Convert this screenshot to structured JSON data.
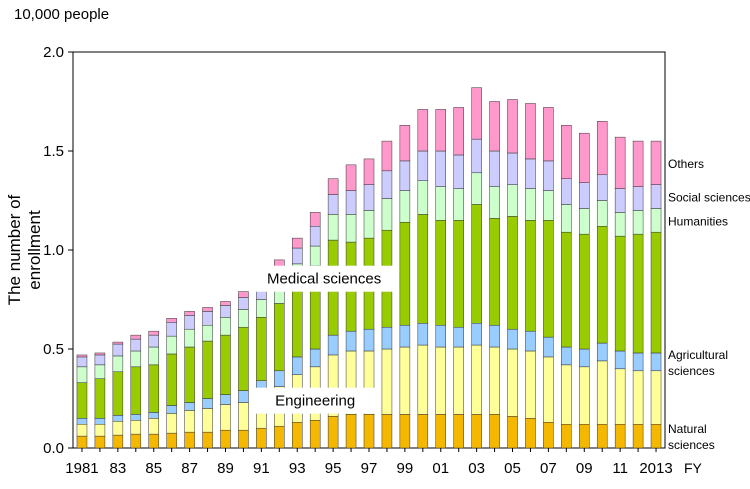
{
  "unit_label": "10,000 people",
  "chart_data": {
    "type": "bar",
    "stacked": true,
    "ylabel": "The number of enrollment",
    "ylim": [
      0,
      2.0
    ],
    "y_ticks": [
      "0.0",
      "0.5",
      "1.0",
      "1.5",
      "2.0"
    ],
    "x_axis_suffix": "FY",
    "categories": [
      "1981",
      "82",
      "83",
      "84",
      "85",
      "86",
      "87",
      "88",
      "89",
      "90",
      "91",
      "92",
      "93",
      "94",
      "95",
      "96",
      "97",
      "98",
      "99",
      "2000",
      "01",
      "02",
      "03",
      "04",
      "05",
      "06",
      "07",
      "08",
      "09",
      "10",
      "11",
      "12",
      "2013"
    ],
    "tick_labels": [
      "1981",
      "",
      "83",
      "",
      "85",
      "",
      "87",
      "",
      "89",
      "",
      "91",
      "",
      "93",
      "",
      "95",
      "",
      "97",
      "",
      "99",
      "",
      "01",
      "",
      "03",
      "",
      "05",
      "",
      "07",
      "",
      "09",
      "",
      "11",
      "",
      "2013"
    ],
    "series": [
      {
        "name": "Natural sciences",
        "color": "#F5B800",
        "values": [
          0.06,
          0.06,
          0.065,
          0.07,
          0.07,
          0.075,
          0.08,
          0.08,
          0.09,
          0.09,
          0.1,
          0.11,
          0.13,
          0.14,
          0.16,
          0.17,
          0.17,
          0.17,
          0.17,
          0.17,
          0.17,
          0.17,
          0.17,
          0.17,
          0.16,
          0.15,
          0.13,
          0.12,
          0.12,
          0.12,
          0.12,
          0.12,
          0.12
        ]
      },
      {
        "name": "Engineering",
        "color": "#FFFF99",
        "values": [
          0.06,
          0.06,
          0.07,
          0.07,
          0.08,
          0.1,
          0.11,
          0.12,
          0.13,
          0.14,
          0.17,
          0.2,
          0.24,
          0.27,
          0.31,
          0.32,
          0.32,
          0.33,
          0.34,
          0.35,
          0.34,
          0.34,
          0.35,
          0.34,
          0.34,
          0.34,
          0.33,
          0.3,
          0.29,
          0.32,
          0.28,
          0.27,
          0.27
        ]
      },
      {
        "name": "Agricultural sciences",
        "color": "#99CCFF",
        "values": [
          0.03,
          0.03,
          0.03,
          0.03,
          0.03,
          0.04,
          0.04,
          0.05,
          0.05,
          0.06,
          0.07,
          0.08,
          0.09,
          0.09,
          0.1,
          0.1,
          0.11,
          0.11,
          0.11,
          0.11,
          0.11,
          0.1,
          0.11,
          0.11,
          0.1,
          0.1,
          0.1,
          0.09,
          0.09,
          0.09,
          0.09,
          0.09,
          0.09
        ]
      },
      {
        "name": "Medical sciences",
        "color": "#99CC00",
        "values": [
          0.18,
          0.2,
          0.22,
          0.24,
          0.24,
          0.26,
          0.28,
          0.29,
          0.3,
          0.32,
          0.32,
          0.34,
          0.37,
          0.42,
          0.48,
          0.45,
          0.46,
          0.49,
          0.52,
          0.55,
          0.53,
          0.54,
          0.6,
          0.54,
          0.57,
          0.56,
          0.59,
          0.58,
          0.58,
          0.59,
          0.58,
          0.6,
          0.61
        ]
      },
      {
        "name": "Humanities",
        "color": "#CCFFCC",
        "values": [
          0.08,
          0.07,
          0.08,
          0.08,
          0.09,
          0.09,
          0.09,
          0.08,
          0.09,
          0.09,
          0.09,
          0.1,
          0.1,
          0.1,
          0.13,
          0.14,
          0.14,
          0.16,
          0.16,
          0.17,
          0.17,
          0.16,
          0.16,
          0.16,
          0.16,
          0.16,
          0.15,
          0.14,
          0.13,
          0.13,
          0.12,
          0.12,
          0.12
        ]
      },
      {
        "name": "Social sciences",
        "color": "#CCCCFF",
        "values": [
          0.05,
          0.05,
          0.06,
          0.06,
          0.06,
          0.07,
          0.07,
          0.07,
          0.06,
          0.06,
          0.07,
          0.08,
          0.08,
          0.1,
          0.1,
          0.12,
          0.13,
          0.14,
          0.15,
          0.15,
          0.18,
          0.17,
          0.17,
          0.18,
          0.16,
          0.15,
          0.15,
          0.13,
          0.13,
          0.13,
          0.12,
          0.12,
          0.12
        ]
      },
      {
        "name": "Others",
        "color": "#FF99CC",
        "values": [
          0.01,
          0.01,
          0.01,
          0.02,
          0.02,
          0.02,
          0.02,
          0.02,
          0.02,
          0.03,
          0.03,
          0.04,
          0.05,
          0.07,
          0.08,
          0.13,
          0.13,
          0.15,
          0.18,
          0.21,
          0.21,
          0.24,
          0.26,
          0.25,
          0.27,
          0.28,
          0.27,
          0.27,
          0.25,
          0.27,
          0.26,
          0.23,
          0.22
        ]
      }
    ],
    "in_chart_labels": [
      "Medical sciences",
      "Engineering"
    ],
    "right_labels": [
      {
        "series": "Others",
        "text": [
          "Others"
        ]
      },
      {
        "series": "Social sciences",
        "text": [
          "Social sciences"
        ]
      },
      {
        "series": "Humanities",
        "text": [
          "Humanities"
        ]
      },
      {
        "series": "Agricultural sciences",
        "text": [
          "Agricultural",
          "sciences"
        ]
      },
      {
        "series": "Natural sciences",
        "text": [
          "Natural",
          "sciences"
        ]
      }
    ]
  }
}
